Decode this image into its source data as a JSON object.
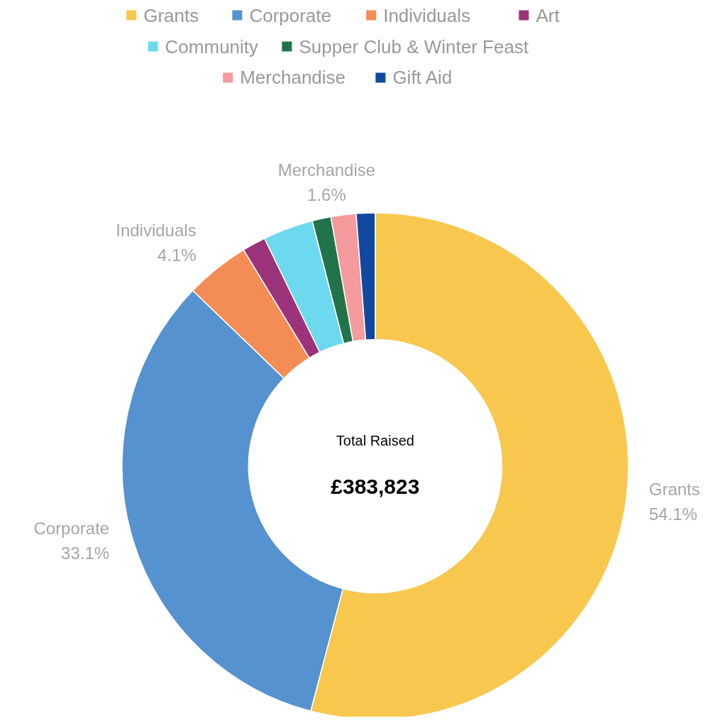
{
  "chart_data": {
    "type": "donut",
    "categories": [
      "Grants",
      "Corporate",
      "Individuals",
      "Art",
      "Community",
      "Supper Club & Winter Feast",
      "Merchandise",
      "Gift Aid"
    ],
    "values": [
      54.1,
      33.1,
      4.1,
      1.5,
      3.2,
      1.2,
      1.6,
      1.2
    ],
    "colors": [
      "#f8c74e",
      "#5592cf",
      "#f48c55",
      "#9a3379",
      "#6dd9ef",
      "#22734a",
      "#f59a9d",
      "#1149a0"
    ],
    "value_labels": [
      "54.1%",
      "33.1%",
      "4.1%",
      null,
      null,
      null,
      "1.6%",
      null
    ],
    "legend": "top",
    "annotations": [
      "Total Raised",
      "£383,823"
    ]
  }
}
